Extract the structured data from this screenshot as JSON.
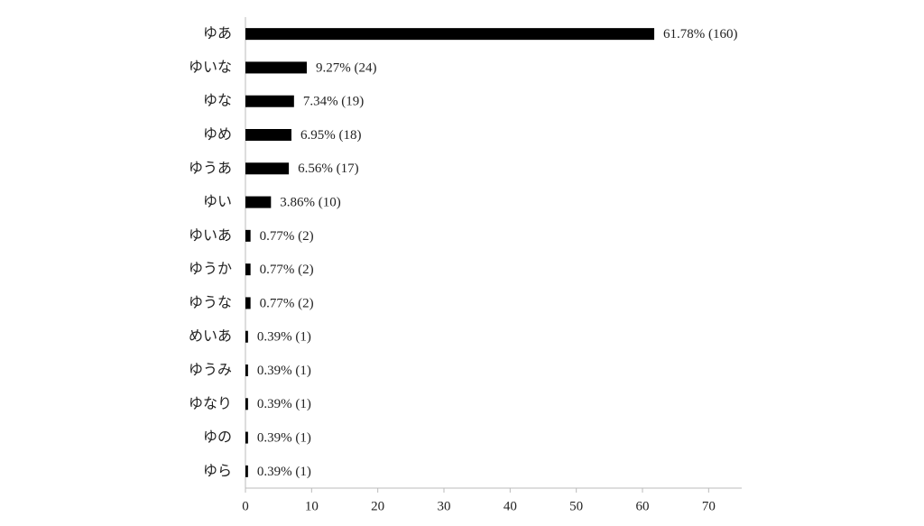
{
  "chart_data": {
    "type": "bar",
    "orientation": "horizontal",
    "color": "#000000",
    "categories": [
      "ゆあ",
      "ゆいな",
      "ゆな",
      "ゆめ",
      "ゆうあ",
      "ゆい",
      "ゆいあ",
      "ゆうか",
      "ゆうな",
      "めいあ",
      "ゆうみ",
      "ゆなり",
      "ゆの",
      "ゆら"
    ],
    "values": [
      61.78,
      9.27,
      7.34,
      6.95,
      6.56,
      3.86,
      0.77,
      0.77,
      0.77,
      0.39,
      0.39,
      0.39,
      0.39,
      0.39
    ],
    "value_labels": [
      "61.78% (160)",
      "9.27% (24)",
      "7.34% (19)",
      "6.95% (18)",
      "6.56% (17)",
      "3.86% (10)",
      "0.77% (2)",
      "0.77% (2)",
      "0.77% (2)",
      "0.39% (1)",
      "0.39% (1)",
      "0.39% (1)",
      "0.39% (1)",
      "0.39% (1)"
    ],
    "xlim": [
      0,
      75
    ],
    "xticks": [
      0,
      10,
      20,
      30,
      40,
      50,
      60,
      70
    ]
  }
}
